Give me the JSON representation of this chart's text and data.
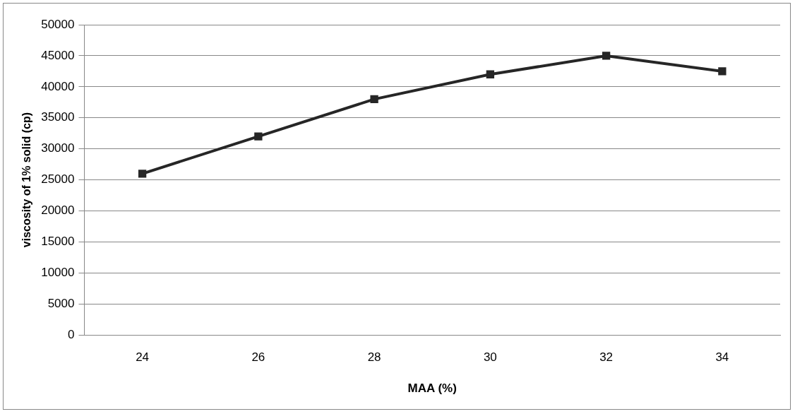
{
  "chart_data": {
    "type": "line",
    "xlabel": "MAA (%)",
    "ylabel": "viscosity of 1% solid (cp)",
    "categories": [
      "24",
      "26",
      "28",
      "30",
      "32",
      "34"
    ],
    "series": [
      {
        "color": "#262626",
        "values": [
          26000,
          32000,
          38000,
          42000,
          45000,
          42500
        ]
      }
    ],
    "ylim": [
      0,
      50000
    ],
    "yticks": [
      0,
      5000,
      10000,
      15000,
      20000,
      25000,
      30000,
      35000,
      40000,
      45000,
      50000
    ],
    "grid": "y",
    "legend": false,
    "marker": "square",
    "line_style": "solid"
  }
}
